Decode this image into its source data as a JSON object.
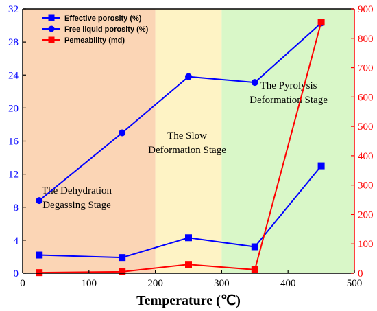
{
  "chart_data": {
    "type": "line",
    "xlabel": "Temperature (℃)",
    "xlim": [
      0,
      500
    ],
    "x_ticks": [
      0,
      100,
      200,
      300,
      400,
      500
    ],
    "y_left": {
      "label": "",
      "lim": [
        0,
        32
      ],
      "ticks": [
        0,
        4,
        8,
        12,
        16,
        20,
        24,
        28,
        32
      ],
      "color": "#0000ff"
    },
    "y_right": {
      "label": "",
      "lim": [
        0,
        900
      ],
      "ticks": [
        0,
        100,
        200,
        300,
        400,
        500,
        600,
        700,
        800,
        900
      ],
      "color": "#ff0000"
    },
    "grid": false,
    "legend_position": "top-left",
    "regions": [
      {
        "x_start": 0,
        "x_end": 200,
        "color": "#fbd5b5",
        "label_lines": [
          "The Dehydration",
          "Degassing Stage"
        ]
      },
      {
        "x_start": 200,
        "x_end": 300,
        "color": "#fef3c5",
        "label_lines": [
          "The Slow",
          "Deformation Stage"
        ]
      },
      {
        "x_start": 300,
        "x_end": 500,
        "color": "#d9f7c8",
        "label_lines": [
          "The Pyrolysis",
          "Deformation Stage"
        ]
      }
    ],
    "series": [
      {
        "name": "Effective porosity (%)",
        "axis": "left",
        "marker": "square",
        "color": "#0000ff",
        "x": [
          25,
          150,
          250,
          350,
          450
        ],
        "y": [
          2.2,
          1.9,
          4.3,
          3.2,
          13.0
        ]
      },
      {
        "name": "Free liquid porosity  (%)",
        "axis": "left",
        "marker": "circle",
        "color": "#0000ff",
        "x": [
          25,
          150,
          250,
          350,
          450
        ],
        "y": [
          8.8,
          17.0,
          23.8,
          23.1,
          30.3
        ]
      },
      {
        "name": "Pemeability (md)",
        "axis": "right",
        "marker": "square",
        "color": "#ff0000",
        "x": [
          25,
          150,
          250,
          350,
          450
        ],
        "y": [
          2,
          5,
          30,
          12,
          855
        ]
      }
    ]
  }
}
